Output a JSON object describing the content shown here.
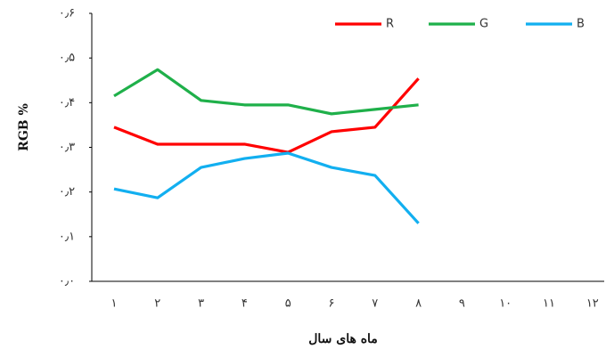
{
  "chart_data": {
    "type": "line",
    "xlabel": "ماه های سال",
    "ylabel": "RGB %",
    "categories": [
      "۱",
      "۲",
      "۳",
      "۴",
      "۵",
      "۶",
      "۷",
      "۸",
      "۹",
      "۱۰",
      "۱۱",
      "۱۲"
    ],
    "series": [
      {
        "name": "R",
        "color": "#ff0000",
        "values": [
          0.345,
          0.307,
          0.307,
          0.307,
          0.289,
          0.335,
          0.345,
          0.454,
          null,
          null,
          null,
          null
        ]
      },
      {
        "name": "G",
        "color": "#1fb04a",
        "values": [
          0.415,
          0.474,
          0.405,
          0.395,
          0.395,
          0.375,
          0.385,
          0.395,
          null,
          null,
          null,
          null
        ]
      },
      {
        "name": "B",
        "color": "#12aff0",
        "values": [
          0.207,
          0.187,
          0.255,
          0.275,
          0.287,
          0.255,
          0.237,
          0.13,
          null,
          null,
          null,
          null
        ]
      }
    ],
    "ylim": [
      0,
      0.6
    ],
    "yticks": [
      {
        "value": 0,
        "label": "۰٫۰"
      },
      {
        "value": 0.1,
        "label": "۰٫۱"
      },
      {
        "value": 0.2,
        "label": "۰٫۲"
      },
      {
        "value": 0.3,
        "label": "۰٫۳"
      },
      {
        "value": 0.4,
        "label": "۰٫۴"
      },
      {
        "value": 0.5,
        "label": "۰٫۵"
      },
      {
        "value": 0.6,
        "label": "۰٫۶"
      }
    ],
    "legend": "top-right"
  }
}
